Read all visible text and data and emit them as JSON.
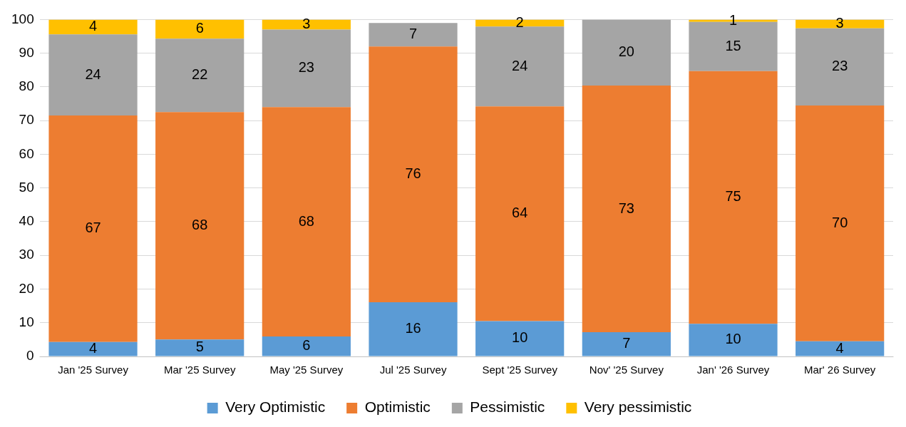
{
  "chart_data": {
    "type": "bar",
    "stacked": true,
    "categories": [
      "Jan '25 Survey",
      "Mar '25 Survey",
      "May '25 Survey",
      "Jul '25 Survey",
      "Sept '25 Survey",
      "Nov' '25 Survey",
      "Jan' '26 Survey",
      "Mar' 26 Survey"
    ],
    "series": [
      {
        "name": "Very Optimistic",
        "color": "#5b9bd5",
        "values": [
          4.3,
          5.0,
          5.9,
          16.1,
          10.5,
          7.2,
          9.7,
          4.5
        ],
        "value_labels": [
          "4",
          "5",
          "6",
          "16",
          "10",
          "7",
          "10",
          "4"
        ]
      },
      {
        "name": "Optimistic",
        "color": "#ed7d31",
        "values": [
          67.2,
          67.5,
          68.1,
          75.9,
          63.7,
          73.2,
          75.0,
          70.0
        ],
        "value_labels": [
          "67",
          "68",
          "68",
          "76",
          "64",
          "73",
          "75",
          "70"
        ]
      },
      {
        "name": "Pessimistic",
        "color": "#a5a5a5",
        "values": [
          24.1,
          21.8,
          23.0,
          7.0,
          23.7,
          19.6,
          14.6,
          22.9
        ],
        "value_labels": [
          "24",
          "22",
          "23",
          "7",
          "24",
          "20",
          "15",
          "23"
        ]
      },
      {
        "name": "Very pessimistic",
        "color": "#ffc000",
        "values": [
          4.4,
          5.7,
          3.0,
          null,
          2.1,
          null,
          0.7,
          2.6
        ],
        "value_labels": [
          "4",
          "6",
          "3",
          null,
          "2",
          null,
          "1",
          "3"
        ]
      }
    ],
    "ylim": [
      0,
      100
    ],
    "yticks": [
      0,
      10,
      20,
      30,
      40,
      50,
      60,
      70,
      80,
      90,
      100
    ],
    "grid": "y",
    "legend": "bottom"
  }
}
